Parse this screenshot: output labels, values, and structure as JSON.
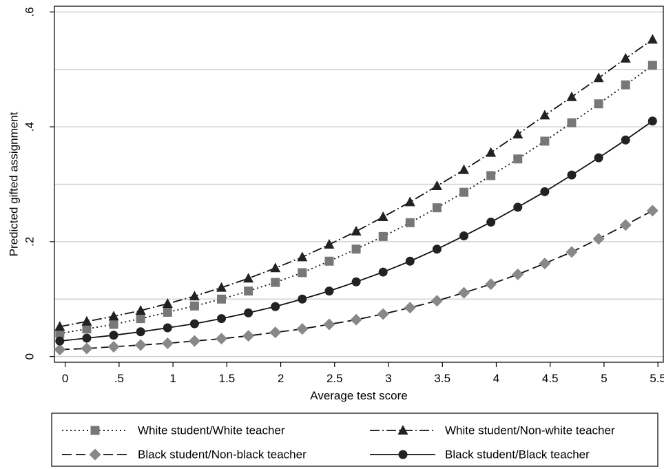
{
  "chart_data": {
    "type": "line",
    "title": "",
    "xlabel": "Average test score",
    "ylabel": "Predicted gifted assignment",
    "xlim": [
      -0.1,
      5.55
    ],
    "ylim": [
      -0.01,
      0.61
    ],
    "x_ticks": [
      0,
      0.5,
      1,
      1.5,
      2,
      2.5,
      3,
      3.5,
      4,
      4.5,
      5,
      5.5
    ],
    "x_tick_labels": [
      "0",
      ".5",
      "1",
      "1.5",
      "2",
      "2.5",
      "3",
      "3.5",
      "4",
      "4.5",
      "5",
      "5.5"
    ],
    "y_ticks": [
      0,
      0.2,
      0.4,
      0.6
    ],
    "y_tick_labels": [
      "0",
      ".2",
      ".4",
      ".6"
    ],
    "grid": true,
    "legend_position": "bottom",
    "x": [
      -0.05,
      0.2,
      0.45,
      0.7,
      0.95,
      1.2,
      1.45,
      1.7,
      1.95,
      2.2,
      2.45,
      2.7,
      2.95,
      3.2,
      3.45,
      3.7,
      3.95,
      4.2,
      4.45,
      4.7,
      4.95,
      5.2,
      5.45
    ],
    "series": [
      {
        "name": "White student/White teacher",
        "line": "dotted",
        "marker": "square",
        "color": "#777777",
        "values": [
          0.04,
          0.048,
          0.056,
          0.066,
          0.077,
          0.088,
          0.1,
          0.114,
          0.129,
          0.146,
          0.166,
          0.187,
          0.209,
          0.233,
          0.259,
          0.286,
          0.315,
          0.344,
          0.375,
          0.407,
          0.44,
          0.473,
          0.507
        ]
      },
      {
        "name": "White student/Non-white teacher",
        "line": "dash-dot",
        "marker": "triangle",
        "color": "#222222",
        "values": [
          0.052,
          0.061,
          0.07,
          0.08,
          0.092,
          0.105,
          0.12,
          0.136,
          0.154,
          0.173,
          0.195,
          0.218,
          0.243,
          0.269,
          0.297,
          0.325,
          0.355,
          0.387,
          0.42,
          0.452,
          0.485,
          0.519,
          0.552
        ]
      },
      {
        "name": "Black student/Non-black teacher",
        "line": "dashed",
        "marker": "diamond",
        "color": "#888888",
        "values": [
          0.012,
          0.014,
          0.017,
          0.02,
          0.023,
          0.027,
          0.031,
          0.036,
          0.042,
          0.048,
          0.056,
          0.064,
          0.074,
          0.085,
          0.097,
          0.111,
          0.126,
          0.143,
          0.162,
          0.182,
          0.205,
          0.229,
          0.254
        ]
      },
      {
        "name": "Black student/Black teacher",
        "line": "solid",
        "marker": "circle",
        "color": "#222222",
        "values": [
          0.027,
          0.032,
          0.037,
          0.043,
          0.05,
          0.057,
          0.066,
          0.076,
          0.087,
          0.1,
          0.114,
          0.13,
          0.147,
          0.166,
          0.187,
          0.21,
          0.234,
          0.26,
          0.287,
          0.316,
          0.346,
          0.377,
          0.41
        ]
      }
    ]
  }
}
